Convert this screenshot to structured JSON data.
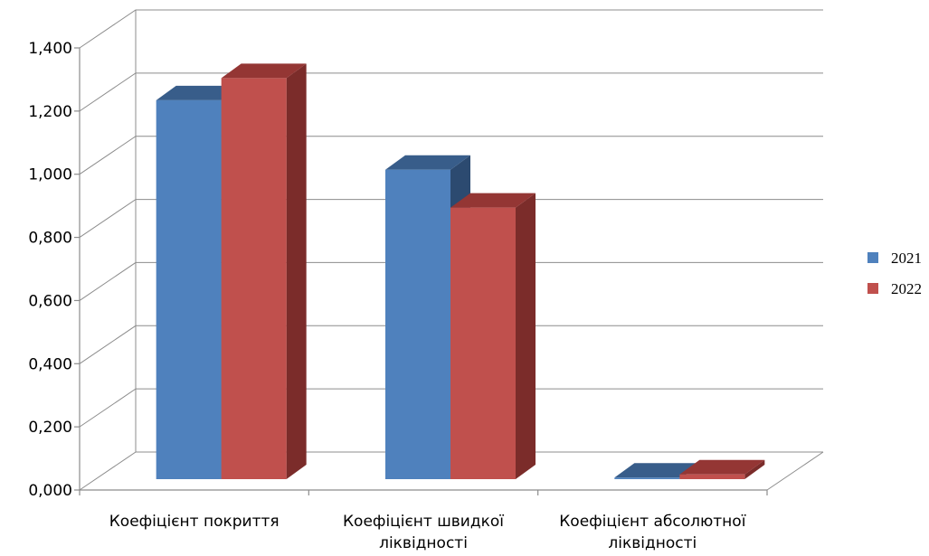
{
  "chart_data": {
    "type": "bar",
    "categories": [
      [
        "Коефіцієнт покриття"
      ],
      [
        "Коефіцієнт швидкої",
        "ліквідності"
      ],
      [
        "Коефіцієнт абсолютної",
        "ліквідності"
      ]
    ],
    "series": [
      {
        "name": "2021",
        "values": [
          1.2,
          0.98,
          0.005
        ],
        "color": "#4f81bd",
        "top_color": "#385d8a",
        "side_color": "#2c4a70"
      },
      {
        "name": "2022",
        "values": [
          1.27,
          0.86,
          0.015
        ],
        "color": "#c0504d",
        "top_color": "#943634",
        "side_color": "#7b2c2a"
      }
    ],
    "y_ticks": [
      "0,000",
      "0,200",
      "0,400",
      "0,600",
      "0,800",
      "1,000",
      "1,200",
      "1,400"
    ],
    "ylim": [
      0,
      1.4
    ],
    "grid": true,
    "legend_position": "right",
    "three_d": true
  }
}
